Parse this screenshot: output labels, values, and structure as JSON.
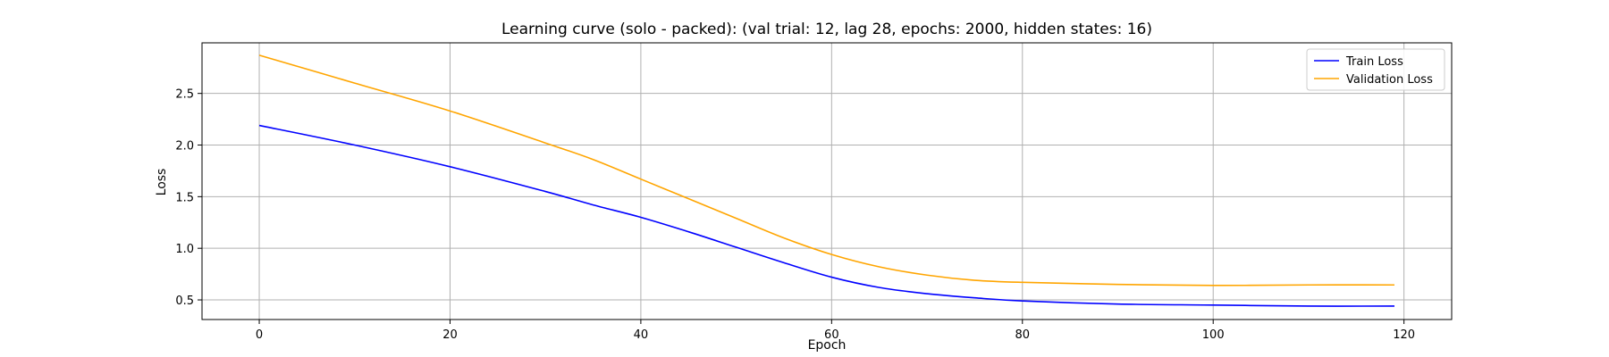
{
  "chart_data": {
    "type": "line",
    "title": "Learning curve (solo - packed): (val trial: 12, lag 28, epochs: 2000, hidden states: 16)",
    "xlabel": "Epoch",
    "ylabel": "Loss",
    "xlim": [
      -6,
      125
    ],
    "ylim": [
      0.31,
      2.99
    ],
    "xticks": [
      0,
      20,
      40,
      60,
      80,
      100,
      120
    ],
    "yticks": [
      0.5,
      1.0,
      1.5,
      2.0,
      2.5
    ],
    "xtick_labels": [
      "0",
      "20",
      "40",
      "60",
      "80",
      "100",
      "120"
    ],
    "ytick_labels": [
      "0.5",
      "1.0",
      "1.5",
      "2.0",
      "2.5"
    ],
    "grid": true,
    "legend_position": "top-right",
    "series": [
      {
        "name": "Train Loss",
        "color": "#0000ff",
        "x": [
          0,
          10,
          20,
          30,
          35,
          40,
          45,
          50,
          55,
          60,
          65,
          70,
          75,
          80,
          90,
          100,
          110,
          119
        ],
        "y": [
          2.19,
          2.0,
          1.79,
          1.55,
          1.42,
          1.3,
          1.16,
          1.01,
          0.86,
          0.72,
          0.62,
          0.56,
          0.52,
          0.49,
          0.46,
          0.45,
          0.44,
          0.44
        ]
      },
      {
        "name": "Validation Loss",
        "color": "#ffa500",
        "x": [
          0,
          10,
          20,
          30,
          35,
          40,
          45,
          50,
          55,
          60,
          65,
          70,
          75,
          80,
          90,
          100,
          110,
          119
        ],
        "y": [
          2.87,
          2.6,
          2.33,
          2.02,
          1.86,
          1.67,
          1.48,
          1.29,
          1.1,
          0.94,
          0.82,
          0.74,
          0.69,
          0.67,
          0.65,
          0.64,
          0.645,
          0.645
        ]
      }
    ]
  }
}
